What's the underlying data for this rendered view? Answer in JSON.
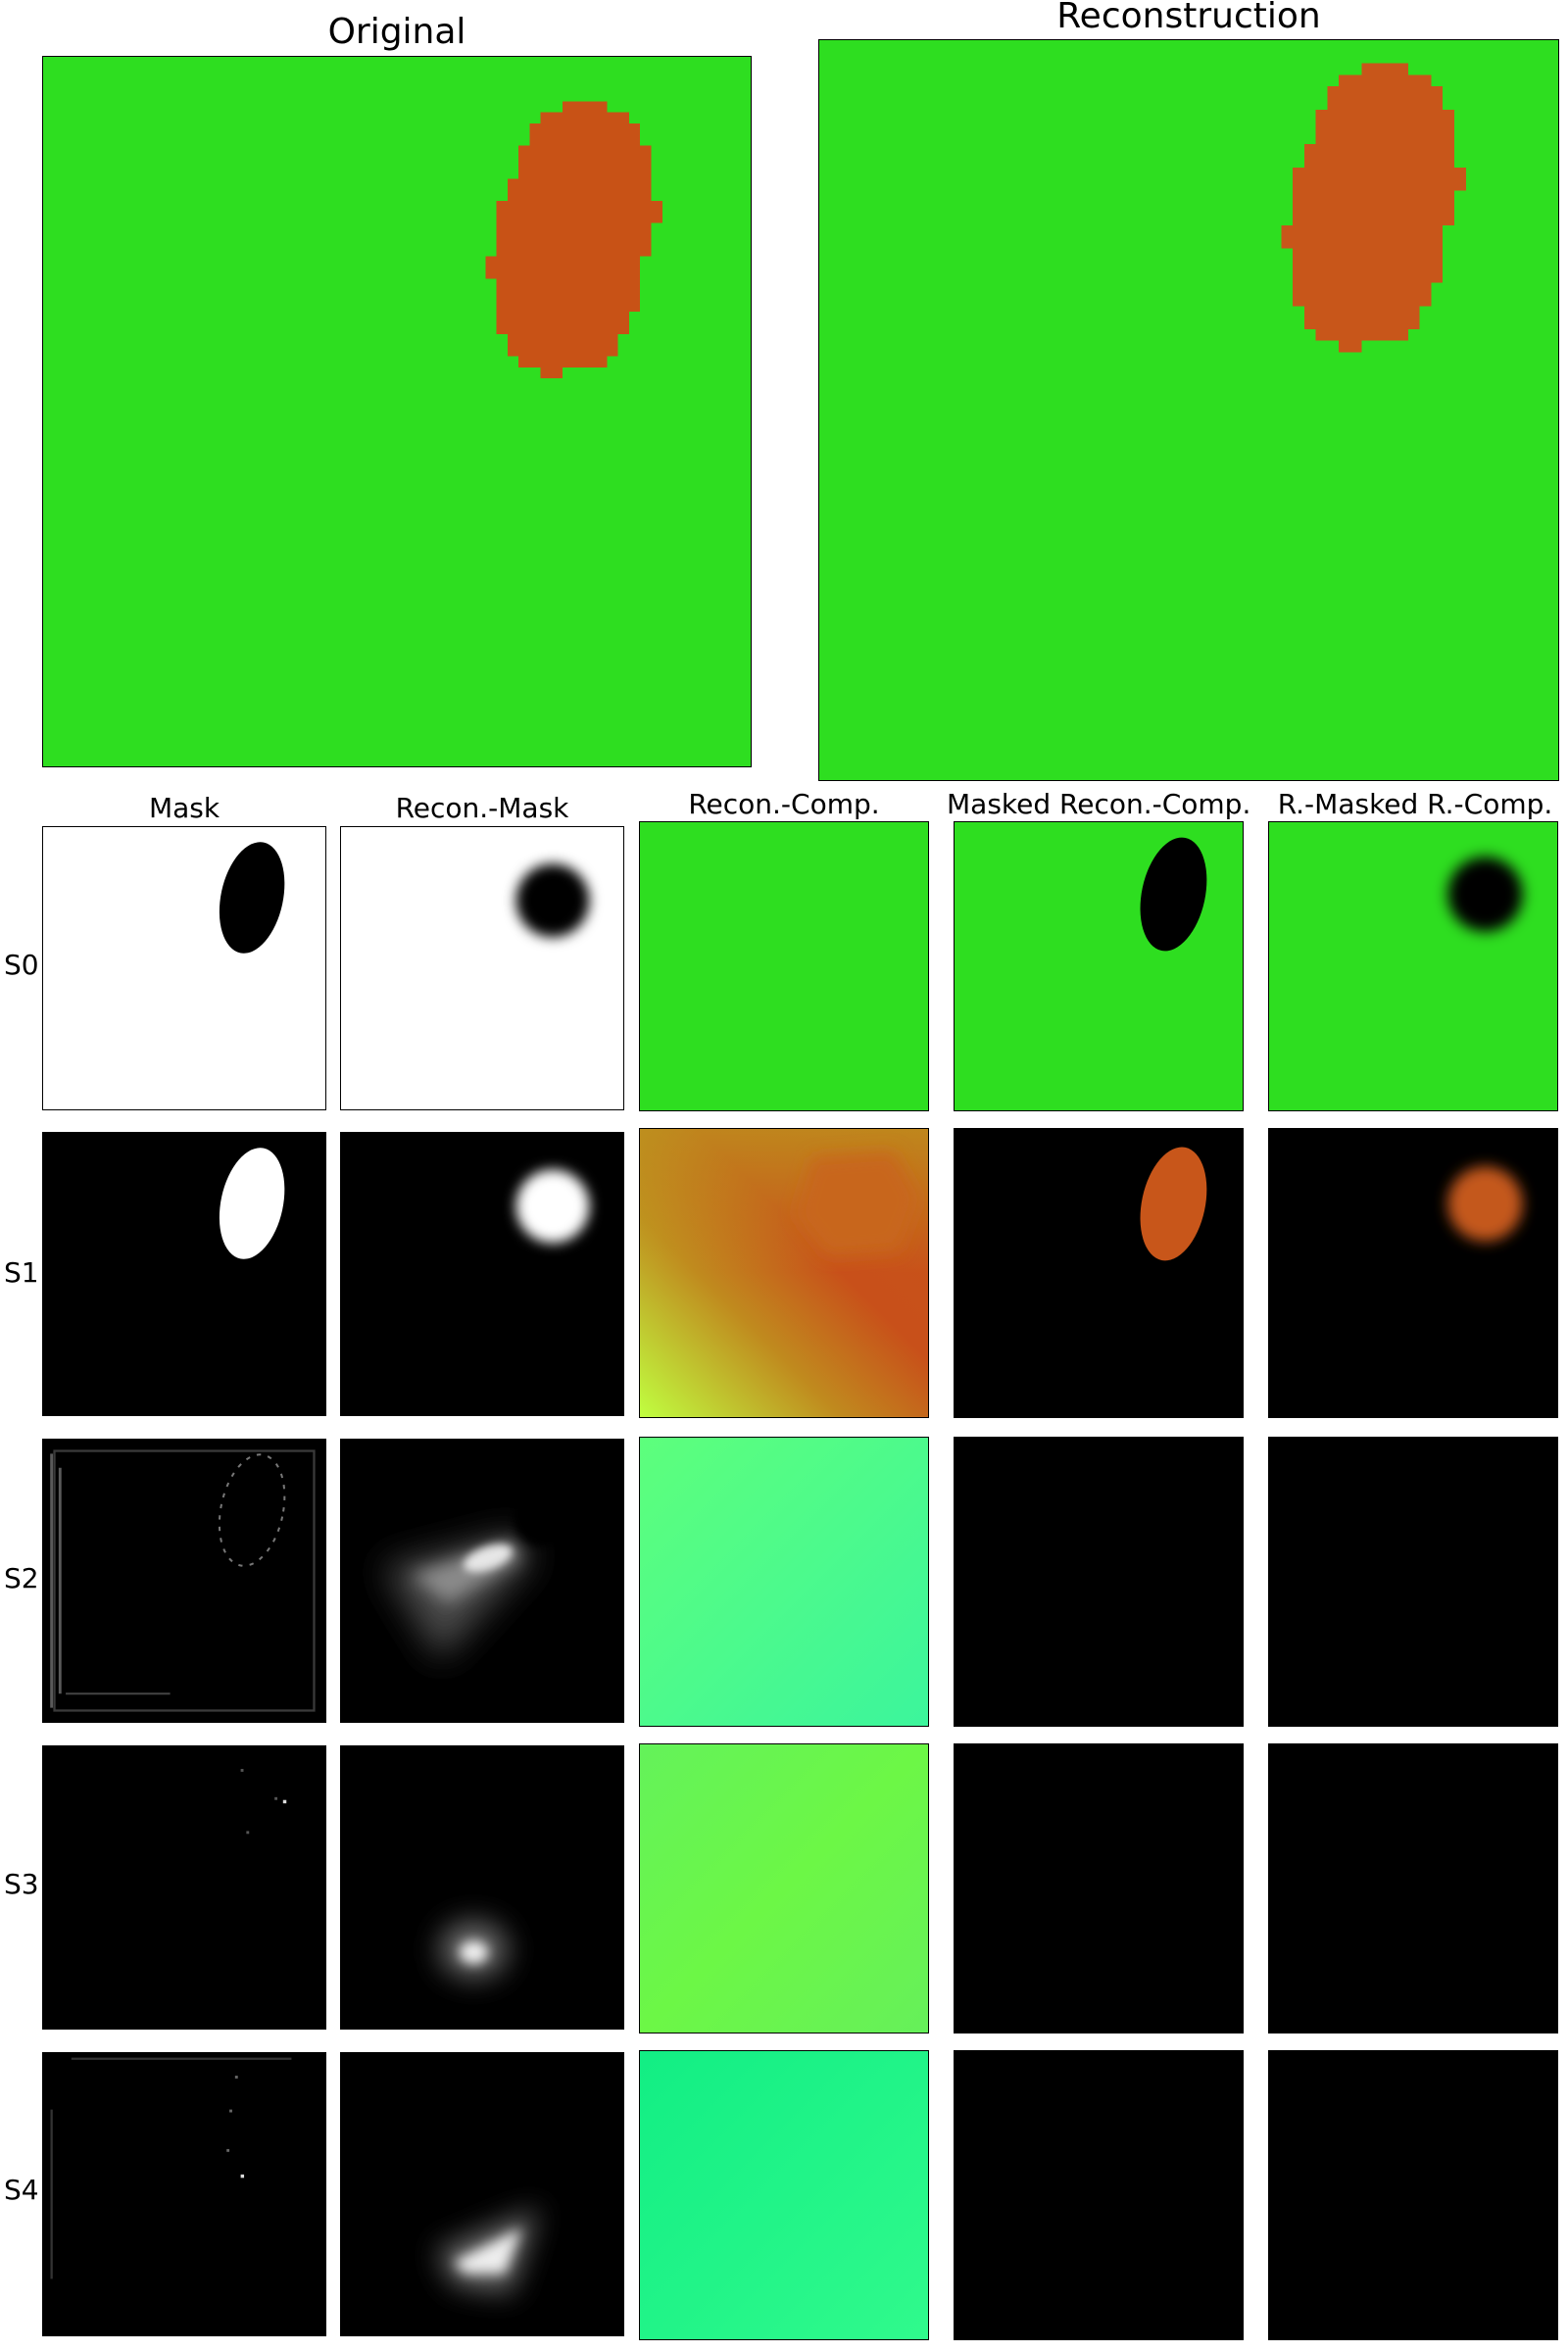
{
  "figure": {
    "top_titles": {
      "original": "Original",
      "reconstruction": "Reconstruction"
    },
    "column_titles": [
      "Mask",
      "Recon.-Mask",
      "Recon.-Comp.",
      "Masked Recon.-Comp.",
      "R.-Masked R.-Comp."
    ],
    "row_labels": [
      "S0",
      "S1",
      "S2",
      "S3",
      "S4"
    ]
  },
  "colors": {
    "background_green": "#2ede20",
    "object_orange": "#c85216",
    "recon_object_orange": "#c8561a",
    "black": "#000000",
    "white": "#ffffff"
  }
}
